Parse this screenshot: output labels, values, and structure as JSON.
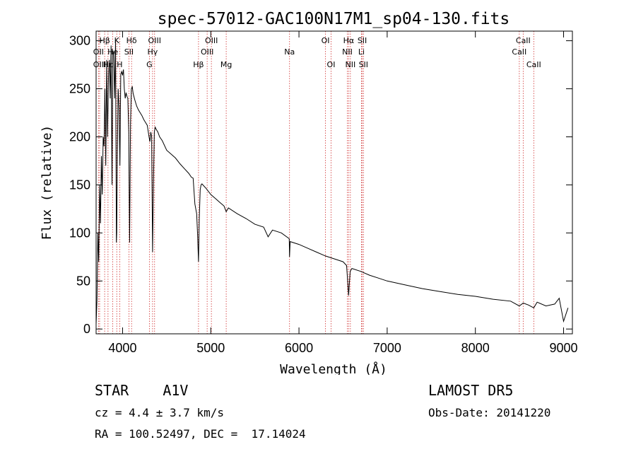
{
  "chart_data": {
    "type": "line",
    "title": "spec-57012-GAC100N17M1_sp04-130.fits",
    "xlabel": "Wavelength (Å)",
    "ylabel": "Flux (relative)",
    "xlim": [
      3700,
      9100
    ],
    "ylim": [
      -5,
      310
    ],
    "xticks": [
      4000,
      5000,
      6000,
      7000,
      8000,
      9000
    ],
    "yticks": [
      0,
      50,
      100,
      150,
      200,
      250,
      300
    ],
    "grid": false,
    "line_color": "#000000",
    "marker_color": "#d03030",
    "lines": [
      {
        "label": "Hβ",
        "row": 1,
        "wave": 3797
      },
      {
        "label": "K",
        "row": 1,
        "wave": 3934
      },
      {
        "label": "Hδ",
        "row": 1,
        "wave": 4102
      },
      {
        "label": "OIII",
        "row": 1,
        "wave": 4363
      },
      {
        "label": "OIII",
        "row": 1,
        "wave": 5007
      },
      {
        "label": "OI",
        "row": 1,
        "wave": 6300
      },
      {
        "label": "Hα",
        "row": 1,
        "wave": 6563
      },
      {
        "label": "SII",
        "row": 1,
        "wave": 6717
      },
      {
        "label": "CaII",
        "row": 1,
        "wave": 8542
      },
      {
        "label": "OII",
        "row": 2,
        "wave": 3727
      },
      {
        "label": "He",
        "row": 2,
        "wave": 3889
      },
      {
        "label": "SII",
        "row": 2,
        "wave": 4072
      },
      {
        "label": "Hγ",
        "row": 2,
        "wave": 4340
      },
      {
        "label": "OIII",
        "row": 2,
        "wave": 4959
      },
      {
        "label": "Na",
        "row": 2,
        "wave": 5893
      },
      {
        "label": "NII",
        "row": 2,
        "wave": 6548
      },
      {
        "label": "Li",
        "row": 2,
        "wave": 6708
      },
      {
        "label": "CaII",
        "row": 2,
        "wave": 8498
      },
      {
        "label": "OIII",
        "row": 3,
        "wave": 3740
      },
      {
        "label": "Hε",
        "row": 3,
        "wave": 3835
      },
      {
        "label": "H",
        "row": 3,
        "wave": 3968
      },
      {
        "label": "G",
        "row": 3,
        "wave": 4304
      },
      {
        "label": "Hβ",
        "row": 3,
        "wave": 4861
      },
      {
        "label": "Mg",
        "row": 3,
        "wave": 5175
      },
      {
        "label": "OI",
        "row": 3,
        "wave": 6364
      },
      {
        "label": "NII",
        "row": 3,
        "wave": 6583
      },
      {
        "label": "SII",
        "row": 3,
        "wave": 6731
      },
      {
        "label": "CaII",
        "row": 3,
        "wave": 8662
      }
    ],
    "spectrum": {
      "x": [
        3700,
        3710,
        3720,
        3730,
        3740,
        3750,
        3760,
        3770,
        3780,
        3790,
        3800,
        3810,
        3820,
        3830,
        3840,
        3850,
        3860,
        3870,
        3880,
        3890,
        3900,
        3910,
        3920,
        3930,
        3934,
        3940,
        3950,
        3960,
        3970,
        3980,
        3990,
        4000,
        4010,
        4020,
        4030,
        4040,
        4050,
        4060,
        4070,
        4080,
        4090,
        4100,
        4110,
        4120,
        4140,
        4160,
        4180,
        4200,
        4220,
        4240,
        4260,
        4280,
        4300,
        4310,
        4320,
        4330,
        4340,
        4350,
        4360,
        4370,
        4380,
        4400,
        4420,
        4450,
        4500,
        4550,
        4600,
        4650,
        4700,
        4750,
        4780,
        4800,
        4820,
        4840,
        4850,
        4861,
        4870,
        4880,
        4890,
        4900,
        4950,
        5000,
        5050,
        5100,
        5150,
        5175,
        5200,
        5300,
        5400,
        5500,
        5600,
        5650,
        5700,
        5800,
        5890,
        5893,
        5900,
        6000,
        6100,
        6200,
        6300,
        6400,
        6500,
        6540,
        6563,
        6580,
        6600,
        6700,
        6800,
        6900,
        7000,
        7200,
        7400,
        7600,
        7800,
        8000,
        8200,
        8400,
        8498,
        8542,
        8600,
        8662,
        8700,
        8800,
        8900,
        8950,
        9000,
        9050
      ],
      "y": [
        5,
        30,
        100,
        70,
        150,
        110,
        180,
        140,
        200,
        190,
        250,
        170,
        280,
        200,
        260,
        280,
        240,
        295,
        150,
        290,
        285,
        240,
        300,
        90,
        100,
        180,
        250,
        230,
        170,
        265,
        268,
        264,
        270,
        250,
        240,
        246,
        242,
        240,
        205,
        90,
        215,
        250,
        252,
        245,
        238,
        232,
        228,
        225,
        222,
        218,
        215,
        212,
        200,
        195,
        205,
        200,
        80,
        150,
        205,
        210,
        208,
        205,
        200,
        196,
        186,
        182,
        178,
        172,
        167,
        162,
        158,
        157,
        130,
        120,
        100,
        70,
        115,
        145,
        150,
        151,
        146,
        140,
        136,
        132,
        128,
        122,
        126,
        120,
        115,
        109,
        106,
        96,
        103,
        100,
        94,
        75,
        91,
        88,
        84,
        80,
        76,
        73,
        70,
        66,
        35,
        60,
        63,
        60,
        56,
        53,
        50,
        46,
        42,
        39,
        36,
        34,
        31,
        29,
        24,
        27,
        25,
        22,
        28,
        24,
        26,
        32,
        8,
        22
      ]
    }
  },
  "info": {
    "class": "STAR    A1V",
    "survey": "LAMOST DR5",
    "cz": "cz = 4.4 ± 3.7 km/s",
    "obs_date": "Obs-Date: 20141220",
    "radec": "RA = 100.52497, DEC =  17.14024"
  }
}
